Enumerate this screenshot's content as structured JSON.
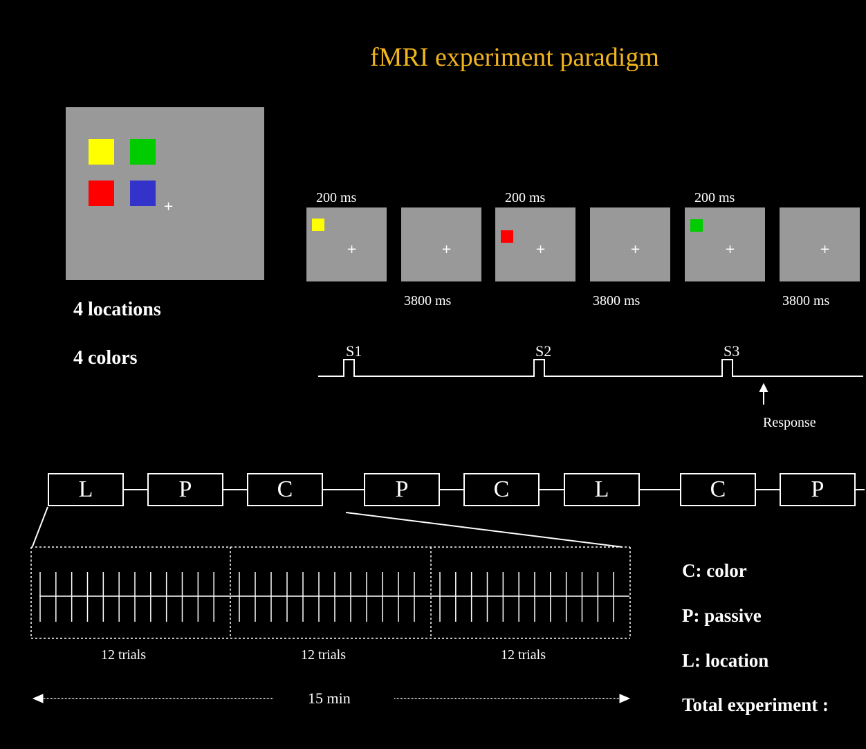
{
  "title": "fMRI experiment paradigm",
  "stimulus_display": {
    "colors": [
      "#ffff00",
      "#00cc00",
      "#ff0000",
      "#3333cc"
    ],
    "caption_locations": "4 locations",
    "caption_colors": "4 colors"
  },
  "trial_sequence": {
    "on_label": "200 ms",
    "off_label": "3800 ms",
    "fixation": "+",
    "frames": [
      {
        "type": "on",
        "stim_color": "#ffff00"
      },
      {
        "type": "off"
      },
      {
        "type": "on",
        "stim_color": "#ff0000"
      },
      {
        "type": "off"
      },
      {
        "type": "on",
        "stim_color": "#00cc00"
      },
      {
        "type": "off"
      }
    ]
  },
  "timeline": {
    "stimuli": [
      "S1",
      "S2",
      "S3"
    ],
    "response_label": "Response"
  },
  "blocks": [
    "L",
    "P",
    "C",
    "P",
    "C",
    "L",
    "C",
    "P"
  ],
  "expansion": {
    "groups": [
      {
        "label": "12 trials",
        "ticks": 12
      },
      {
        "label": "12 trials",
        "ticks": 12
      },
      {
        "label": "12 trials",
        "ticks": 12
      }
    ],
    "duration_label": "15 min"
  },
  "legend": [
    "C: color",
    "P: passive",
    "L: location",
    "Total experiment :"
  ]
}
